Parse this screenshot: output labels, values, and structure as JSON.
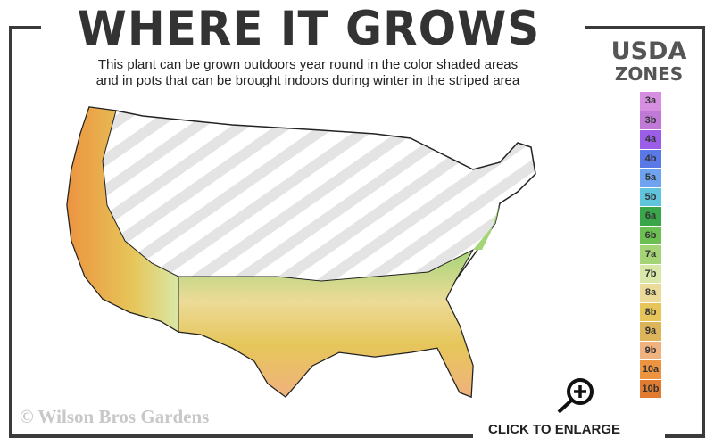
{
  "title": "WHERE IT GROWS",
  "subtitle_line1": "This plant can be grown outdoors year round in the color shaded areas",
  "subtitle_line2": "and in pots that can be brought indoors during winter in the striped area",
  "legend": {
    "title_line1": "USDA",
    "title_line2": "ZONES",
    "zones": [
      {
        "label": "3a",
        "color": "#d58ee0"
      },
      {
        "label": "3b",
        "color": "#c07ad6"
      },
      {
        "label": "4a",
        "color": "#9a5ee8"
      },
      {
        "label": "4b",
        "color": "#5a78e6"
      },
      {
        "label": "5a",
        "color": "#6fa3f0"
      },
      {
        "label": "5b",
        "color": "#5fc4dc"
      },
      {
        "label": "6a",
        "color": "#3aa64a"
      },
      {
        "label": "6b",
        "color": "#6cbf52"
      },
      {
        "label": "7a",
        "color": "#a5d477"
      },
      {
        "label": "7b",
        "color": "#d9e8a8"
      },
      {
        "label": "8a",
        "color": "#ecdb98"
      },
      {
        "label": "8b",
        "color": "#e6c65a"
      },
      {
        "label": "9a",
        "color": "#dcb45a"
      },
      {
        "label": "9b",
        "color": "#f0b27e"
      },
      {
        "label": "10a",
        "color": "#ec9440"
      },
      {
        "label": "10b",
        "color": "#e07b30"
      }
    ]
  },
  "copyright": "© Wilson Bros Gardens",
  "enlarge_label": "CLICK TO ENLARGE",
  "icons": {
    "enlarge": "magnifier-plus-icon"
  }
}
